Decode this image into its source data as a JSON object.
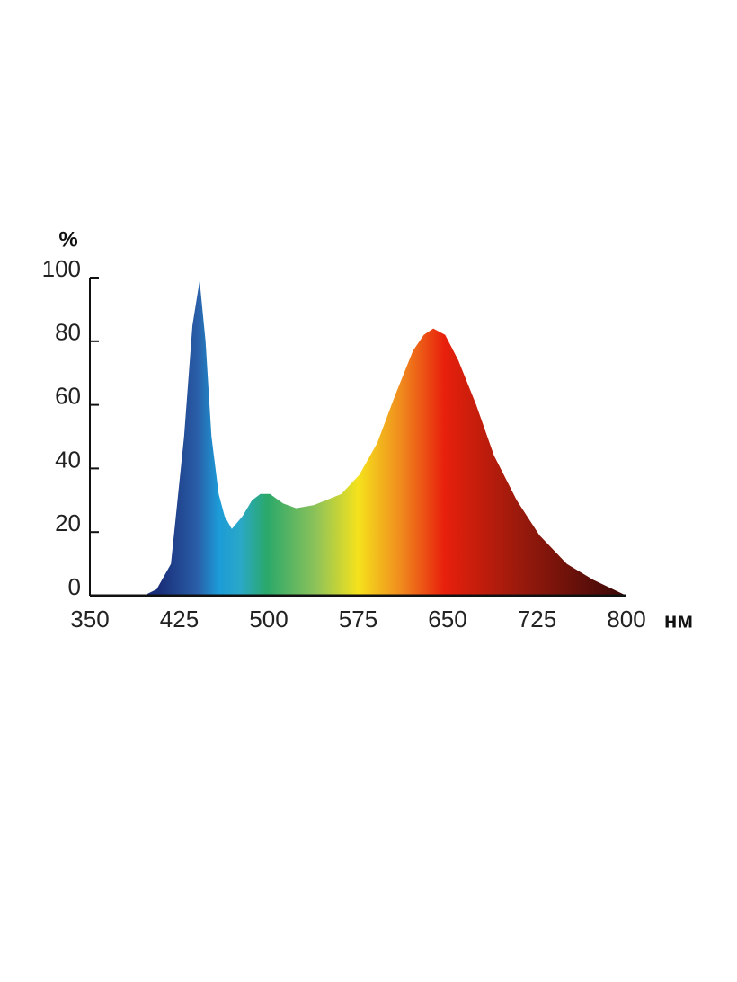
{
  "chart_data": {
    "type": "area",
    "xlabel": "нм",
    "ylabel": "%",
    "x": [
      350,
      395,
      406,
      418,
      429,
      436,
      442,
      447,
      452,
      458,
      463,
      469,
      478,
      486,
      493,
      501,
      512,
      523,
      538,
      561,
      576,
      591,
      606,
      621,
      630,
      638,
      648,
      659,
      674,
      689,
      708,
      727,
      750,
      772,
      800
    ],
    "values": [
      0,
      0,
      2,
      10,
      50,
      85,
      99,
      80,
      50,
      32,
      25,
      21,
      25,
      30,
      32,
      32,
      29,
      27.5,
      28.5,
      32,
      38,
      48,
      63,
      77,
      82,
      84,
      82,
      74,
      60,
      44,
      30,
      19,
      10,
      5,
      0
    ],
    "xlim": [
      350,
      800
    ],
    "xticks": [
      350,
      425,
      500,
      575,
      650,
      725,
      800
    ],
    "ylim": [
      0,
      100
    ],
    "yticks": [
      0,
      20,
      40,
      60,
      80,
      100
    ]
  }
}
